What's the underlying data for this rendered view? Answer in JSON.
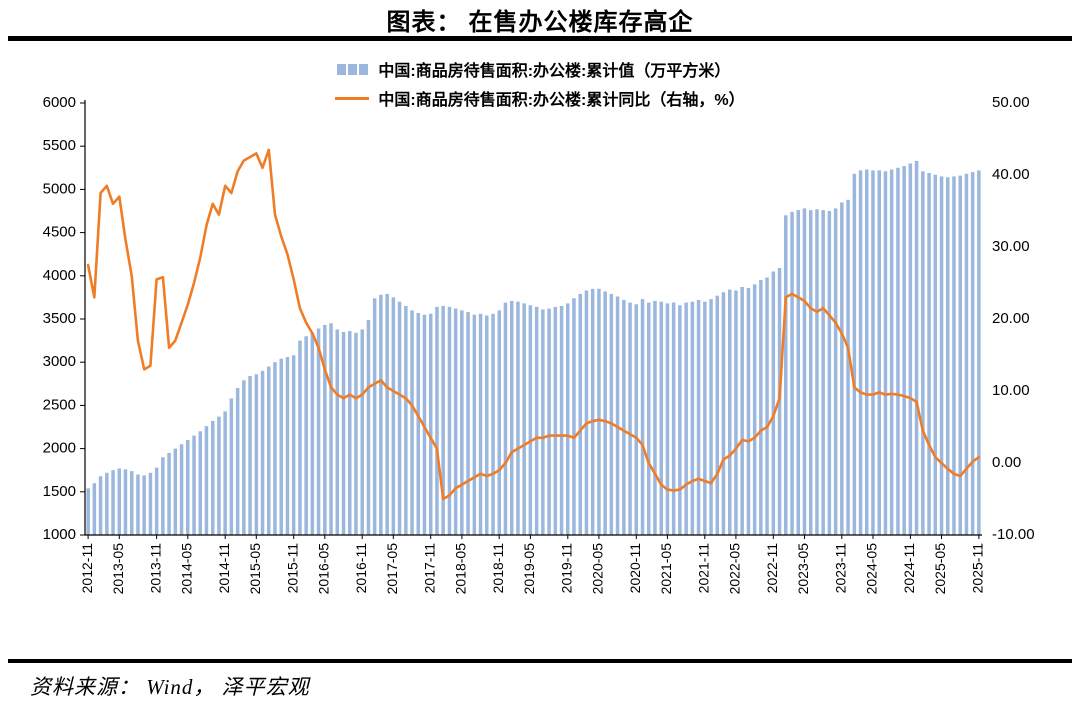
{
  "page": {
    "title": "图表： 在售办公楼库存高企",
    "source": "资料来源： Wind， 泽平宏观"
  },
  "chart_data": {
    "type": "bar",
    "combo": "bar+line",
    "title": "图表： 在售办公楼库存高企",
    "grid": false,
    "legend_position": "top-center",
    "legend": [
      {
        "label": "中国:商品房待售面积:办公楼:累计值（万平方米）",
        "type": "bar",
        "color": "#9BB7DD",
        "axis": "left"
      },
      {
        "label": "中国:商品房待售面积:办公楼:累计同比（右轴，%）",
        "type": "line",
        "color": "#EF7D27",
        "axis": "right"
      }
    ],
    "left_axis": {
      "min": 1000,
      "max": 6000,
      "ticks": [
        6000,
        5500,
        5000,
        4500,
        4000,
        3500,
        3000,
        2500,
        2000,
        1500,
        1000
      ]
    },
    "right_axis": {
      "min": -10,
      "max": 50,
      "ticks": [
        "50.00",
        "40.00",
        "30.00",
        "20.00",
        "10.00",
        "0.00",
        "-10.00"
      ]
    },
    "x": [
      "2012-11",
      "2012-12",
      "2013-02",
      "2013-03",
      "2013-04",
      "2013-05",
      "2013-06",
      "2013-07",
      "2013-08",
      "2013-09",
      "2013-10",
      "2013-11",
      "2013-12",
      "2014-02",
      "2014-03",
      "2014-04",
      "2014-05",
      "2014-06",
      "2014-07",
      "2014-08",
      "2014-09",
      "2014-10",
      "2014-11",
      "2014-12",
      "2015-02",
      "2015-03",
      "2015-04",
      "2015-05",
      "2015-06",
      "2015-07",
      "2015-08",
      "2015-09",
      "2015-10",
      "2015-11",
      "2015-12",
      "2016-02",
      "2016-03",
      "2016-04",
      "2016-05",
      "2016-06",
      "2016-07",
      "2016-08",
      "2016-09",
      "2016-10",
      "2016-11",
      "2016-12",
      "2017-02",
      "2017-03",
      "2017-04",
      "2017-05",
      "2017-06",
      "2017-07",
      "2017-08",
      "2017-09",
      "2017-10",
      "2017-11",
      "2017-12",
      "2018-02",
      "2018-03",
      "2018-04",
      "2018-05",
      "2018-06",
      "2018-07",
      "2018-08",
      "2018-09",
      "2018-10",
      "2018-11",
      "2018-12",
      "2019-02",
      "2019-03",
      "2019-04",
      "2019-05",
      "2019-06",
      "2019-07",
      "2019-08",
      "2019-09",
      "2019-10",
      "2019-11",
      "2019-12",
      "2020-02",
      "2020-03",
      "2020-04",
      "2020-05",
      "2020-06",
      "2020-07",
      "2020-08",
      "2020-09",
      "2020-10",
      "2020-11",
      "2020-12",
      "2021-02",
      "2021-03",
      "2021-04",
      "2021-05",
      "2021-06",
      "2021-07",
      "2021-08",
      "2021-09",
      "2021-10",
      "2021-11",
      "2021-12",
      "2022-02",
      "2022-03",
      "2022-04",
      "2022-05",
      "2022-06",
      "2022-07",
      "2022-08",
      "2022-09",
      "2022-10",
      "2022-11",
      "2022-12",
      "2023-02",
      "2023-03",
      "2023-04",
      "2023-05",
      "2023-06",
      "2023-07",
      "2023-08",
      "2023-09",
      "2023-10",
      "2023-11",
      "2023-12",
      "2024-02",
      "2024-03",
      "2024-04",
      "2024-05",
      "2024-06",
      "2024-07",
      "2024-08",
      "2024-09",
      "2024-10",
      "2024-11",
      "2024-12",
      "2025-02",
      "2025-03",
      "2025-04",
      "2025-05",
      "2025-06",
      "2025-07",
      "2025-08",
      "2025-09",
      "2025-10",
      "2025-11"
    ],
    "series": [
      {
        "name": "中国:商品房待售面积:办公楼:累计值",
        "unit": "万平方米",
        "type": "bar",
        "axis": "left",
        "color": "#9BB7DD",
        "values": [
          1540,
          1600,
          1680,
          1720,
          1750,
          1770,
          1760,
          1740,
          1700,
          1690,
          1720,
          1780,
          1900,
          1950,
          2000,
          2050,
          2100,
          2150,
          2200,
          2260,
          2320,
          2370,
          2430,
          2580,
          2700,
          2790,
          2840,
          2860,
          2900,
          2950,
          3000,
          3040,
          3060,
          3080,
          3250,
          3300,
          3340,
          3390,
          3430,
          3450,
          3380,
          3350,
          3360,
          3340,
          3380,
          3490,
          3740,
          3780,
          3790,
          3750,
          3700,
          3650,
          3600,
          3570,
          3550,
          3560,
          3640,
          3650,
          3640,
          3620,
          3600,
          3580,
          3550,
          3560,
          3540,
          3560,
          3600,
          3690,
          3710,
          3700,
          3680,
          3660,
          3640,
          3610,
          3620,
          3640,
          3650,
          3680,
          3740,
          3790,
          3830,
          3850,
          3850,
          3820,
          3790,
          3760,
          3720,
          3690,
          3670,
          3730,
          3690,
          3710,
          3700,
          3680,
          3690,
          3660,
          3690,
          3700,
          3720,
          3700,
          3730,
          3770,
          3810,
          3840,
          3830,
          3870,
          3860,
          3900,
          3950,
          3980,
          4050,
          4090,
          4700,
          4740,
          4760,
          4780,
          4760,
          4770,
          4760,
          4750,
          4780,
          4850,
          4880,
          5180,
          5220,
          5230,
          5220,
          5220,
          5210,
          5230,
          5250,
          5270,
          5300,
          5330,
          5210,
          5190,
          5170,
          5150,
          5140,
          5150,
          5160,
          5180,
          5200,
          5220
        ]
      },
      {
        "name": "中国:商品房待售面积:办公楼:累计同比",
        "unit": "%",
        "type": "line",
        "axis": "right",
        "color": "#EF7D27",
        "values": [
          27.5,
          23.0,
          37.5,
          38.5,
          36.0,
          37.0,
          31.0,
          26.0,
          17.0,
          13.0,
          13.5,
          25.5,
          25.8,
          16.0,
          17.0,
          19.5,
          22.0,
          25.0,
          28.5,
          33.0,
          36.0,
          34.5,
          38.5,
          37.5,
          40.5,
          42.0,
          42.5,
          43.0,
          41.0,
          43.5,
          34.5,
          31.5,
          29.0,
          25.5,
          21.5,
          19.5,
          18.0,
          16.0,
          13.0,
          10.5,
          9.5,
          9.0,
          9.5,
          9.0,
          9.5,
          10.5,
          11.0,
          11.5,
          10.5,
          10.0,
          9.5,
          9.0,
          8.0,
          6.5,
          5.0,
          3.5,
          2.0,
          -5.0,
          -4.5,
          -3.5,
          -3.0,
          -2.5,
          -2.0,
          -1.5,
          -1.8,
          -1.5,
          -1.0,
          0.0,
          1.5,
          2.0,
          2.5,
          3.0,
          3.5,
          3.5,
          3.8,
          3.8,
          3.8,
          3.8,
          3.5,
          4.5,
          5.5,
          5.8,
          6.0,
          5.8,
          5.5,
          5.0,
          4.5,
          4.0,
          3.5,
          2.5,
          0.0,
          -1.5,
          -3.0,
          -3.7,
          -3.8,
          -3.7,
          -3.0,
          -2.5,
          -2.2,
          -2.5,
          -2.8,
          -1.5,
          0.5,
          1.0,
          2.0,
          3.2,
          3.0,
          3.5,
          4.5,
          5.0,
          6.5,
          9.0,
          23.0,
          23.5,
          23.0,
          22.5,
          21.5,
          21.0,
          21.5,
          20.5,
          19.5,
          18.0,
          16.0,
          10.5,
          9.8,
          9.5,
          9.5,
          9.8,
          9.5,
          9.6,
          9.5,
          9.3,
          9.0,
          8.5,
          4.5,
          2.5,
          0.8,
          0.0,
          -0.8,
          -1.5,
          -1.8,
          -0.8,
          0.2,
          0.8
        ]
      }
    ]
  }
}
